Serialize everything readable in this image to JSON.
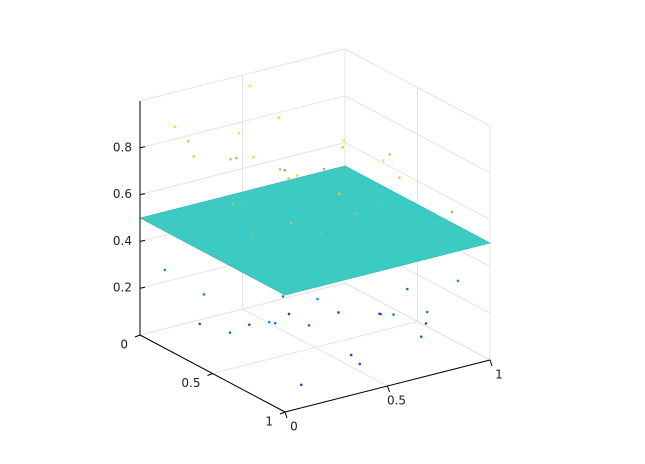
{
  "chart_data": {
    "type": "scatter3d",
    "x": [
      0.9,
      0.8,
      0.7,
      0.85,
      0.75,
      0.9,
      0.8,
      0.6,
      0.55,
      0.45,
      0.35,
      0.6,
      0.95,
      0.95,
      0.5,
      0.4,
      0.3,
      0.2,
      0.25,
      0.15,
      0.05,
      0.1,
      0.05,
      0.1,
      0.15,
      0.65,
      0.4,
      0.55,
      0.95,
      0.85,
      0.8,
      0.65,
      0.7,
      0.7,
      0.35,
      0.1,
      0.3,
      0.05,
      0.2,
      0.1,
      0.3,
      0.05,
      0.2,
      0.1,
      0.3,
      0.45,
      0.5,
      0.6,
      0.4,
      0.5,
      0.4,
      0.2,
      0.6,
      0.65,
      0.75,
      0.7,
      0.85,
      0.9,
      0.9,
      0.85,
      0.55,
      0.45,
      0.3,
      0.2,
      0.5
    ],
    "y": [
      0.1,
      0.2,
      0.3,
      0.45,
      0.6,
      0.7,
      0.85,
      0.9,
      0.55,
      0.35,
      0.15,
      0.05,
      0.25,
      0.5,
      0.75,
      0.95,
      0.8,
      0.65,
      0.4,
      0.2,
      0.1,
      0.3,
      0.55,
      0.75,
      0.9,
      0.45,
      0.6,
      0.25,
      0.85,
      0.05,
      0.35,
      0.7,
      0.95,
      0.15,
      0.5,
      0.1,
      0.2,
      0.3,
      0.4,
      0.5,
      0.6,
      0.7,
      0.8,
      0.9,
      0.95,
      0.85,
      0.7,
      0.55,
      0.4,
      0.25,
      0.1,
      0.05,
      0.15,
      0.35,
      0.6,
      0.8,
      0.95,
      0.75,
      0.45,
      0.2,
      0.9,
      0.65,
      0.3,
      0.5,
      0.05
    ],
    "z": [
      0.1,
      0.15,
      0.2,
      0.05,
      0.12,
      0.08,
      0.2,
      0.25,
      0.3,
      0.18,
      0.28,
      0.22,
      0.3,
      0.15,
      0.05,
      0.1,
      0.35,
      0.22,
      0.12,
      0.08,
      0.3,
      0.25,
      0.18,
      0.28,
      0.05,
      0.1,
      0.15,
      0.05,
      0.3,
      0.35,
      0.4,
      0.38,
      0.15,
      0.45,
      0.42,
      0.9,
      0.75,
      0.85,
      0.95,
      0.7,
      0.8,
      0.65,
      0.9,
      0.75,
      0.85,
      0.7,
      0.95,
      0.85,
      0.75,
      0.9,
      0.7,
      0.8,
      0.62,
      0.68,
      0.6,
      0.78,
      0.65,
      0.55,
      0.72,
      0.58,
      0.92,
      0.55,
      0.6,
      0.88,
      0.97
    ],
    "surface_z": 0.5,
    "surface_color": "#3ccbc3",
    "colormap": [
      "#352a87",
      "#0f5cdd",
      "#1481d6",
      "#06a4ca",
      "#2eb7a4",
      "#87bf77",
      "#d1bb59",
      "#fec832",
      "#f9fb0e"
    ],
    "xlim": [
      0,
      1
    ],
    "ylim": [
      0,
      1
    ],
    "zlim": [
      0,
      1
    ],
    "xticks": [
      0,
      0.5,
      1
    ],
    "yticks": [
      0,
      0.5,
      1
    ],
    "zticks": [
      0.2,
      0.4,
      0.6,
      0.8
    ],
    "grid": true
  }
}
